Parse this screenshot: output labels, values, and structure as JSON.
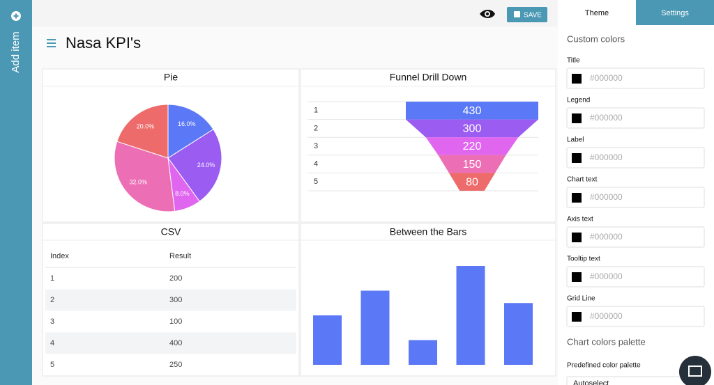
{
  "sidebar": {
    "add_item": "Add item"
  },
  "toolbar": {
    "save": "SAVE"
  },
  "header": {
    "title": "Nasa KPI's"
  },
  "widgets": [
    {
      "title": "Pie",
      "chart_data": {
        "type": "pie",
        "values": [
          16,
          24,
          8,
          32,
          20
        ],
        "value_labels": [
          "16.0%",
          "24.0%",
          "8.0%",
          "32.0%",
          "20.0%"
        ],
        "colors": [
          "#5b78f6",
          "#9b5cf2",
          "#e066f0",
          "#ec6fb5",
          "#ee6b6b"
        ]
      }
    },
    {
      "title": "Funnel Drill Down",
      "chart_data": {
        "type": "funnel",
        "categories": [
          "1",
          "2",
          "3",
          "4",
          "5"
        ],
        "values": [
          430,
          300,
          220,
          150,
          80
        ],
        "colors": [
          "#5b78f6",
          "#9b5cf2",
          "#e066f0",
          "#ec6fb5",
          "#ee6b6b"
        ]
      }
    },
    {
      "title": "CSV",
      "table": {
        "columns": [
          "Index",
          "Result"
        ],
        "rows": [
          [
            1,
            200
          ],
          [
            2,
            300
          ],
          [
            3,
            100
          ],
          [
            4,
            400
          ],
          [
            5,
            250
          ]
        ]
      }
    },
    {
      "title": "Between the Bars",
      "chart_data": {
        "type": "bar",
        "values": [
          200,
          300,
          100,
          400,
          250
        ],
        "color": "#5b78f6"
      }
    }
  ],
  "panel": {
    "tabs": [
      "Theme",
      "Settings"
    ],
    "custom_colors": "Custom colors",
    "fields": [
      {
        "label": "Title",
        "value": "#000000"
      },
      {
        "label": "Legend",
        "value": "#000000"
      },
      {
        "label": "Label",
        "value": "#000000"
      },
      {
        "label": "Chart text",
        "value": "#000000"
      },
      {
        "label": "Axis text",
        "value": "#000000"
      },
      {
        "label": "Tooltip text",
        "value": "#000000"
      },
      {
        "label": "Grid Line",
        "value": "#000000"
      }
    ],
    "palette_heading": "Chart colors palette",
    "palette_label": "Predefined color palette",
    "palette_value": "Autoselect"
  }
}
